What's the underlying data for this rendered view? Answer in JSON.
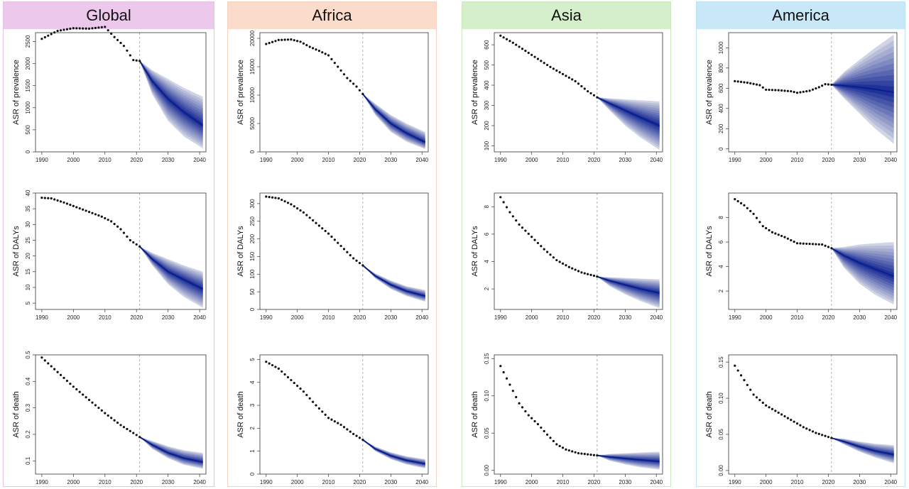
{
  "colors": {
    "Global": {
      "header": "#ecc9ec",
      "border": "#e6c2e6"
    },
    "Africa": {
      "header": "#fbdccb",
      "border": "#f6d2c0"
    },
    "Asia": {
      "header": "#d4efc9",
      "border": "#cce8c0"
    },
    "America": {
      "header": "#c9e8f7",
      "border": "#bfe1f2"
    },
    "points": "#111111",
    "fan_core": "#0a1f8f",
    "fan_outer": "#c8ccdf",
    "divider": "#999999"
  },
  "panels": [
    {
      "region": "Global"
    },
    {
      "region": "Africa"
    },
    {
      "region": "Asia"
    },
    {
      "region": "America"
    }
  ],
  "chart_data": [
    {
      "type": "line",
      "region": "Global",
      "ylabel": "ASR of prevalence",
      "xticks": [
        1990,
        2000,
        2010,
        2020,
        2030,
        2040
      ],
      "yticks": [
        0,
        500,
        1000,
        1500,
        2000,
        2500
      ],
      "ylim": [
        0,
        2700
      ],
      "xlim": [
        1988,
        2042
      ],
      "projection_start": 2021,
      "observed": {
        "x": [
          1990,
          1995,
          2000,
          2005,
          2010,
          2013,
          2016,
          2019,
          2021
        ],
        "y": [
          2560,
          2740,
          2800,
          2790,
          2830,
          2600,
          2400,
          2080,
          2060
        ]
      },
      "forecast": {
        "x": [
          2021,
          2025,
          2030,
          2035,
          2041
        ],
        "mean": [
          2060,
          1600,
          1200,
          900,
          600
        ],
        "lower": [
          2060,
          1300,
          700,
          350,
          80
        ],
        "upper": [
          2060,
          1850,
          1650,
          1450,
          1250
        ]
      }
    },
    {
      "type": "line",
      "region": "Global",
      "ylabel": "ASR of DALYs",
      "xticks": [
        1990,
        2000,
        2010,
        2020,
        2030,
        2040
      ],
      "yticks": [
        5,
        10,
        15,
        20,
        25,
        30,
        35,
        40
      ],
      "ylim": [
        3,
        40
      ],
      "xlim": [
        1988,
        2042
      ],
      "projection_start": 2021,
      "observed": {
        "x": [
          1990,
          1993,
          1997,
          2001,
          2005,
          2009,
          2012,
          2015,
          2018,
          2021
        ],
        "y": [
          38.5,
          38.3,
          37,
          35.5,
          34,
          32.5,
          31,
          28.5,
          25,
          23
        ]
      },
      "forecast": {
        "x": [
          2021,
          2025,
          2030,
          2035,
          2041
        ],
        "mean": [
          23,
          19,
          15,
          12.5,
          9.5
        ],
        "lower": [
          23,
          17,
          11,
          7,
          3.5
        ],
        "upper": [
          23,
          21,
          19,
          17,
          15
        ]
      }
    },
    {
      "type": "line",
      "region": "Global",
      "ylabel": "ASR of death",
      "xticks": [
        1990,
        2000,
        2010,
        2020,
        2030,
        2040
      ],
      "yticks": [
        0.1,
        0.2,
        0.3,
        0.4,
        0.5
      ],
      "ylim": [
        0.05,
        0.5
      ],
      "xlim": [
        1988,
        2042
      ],
      "projection_start": 2021,
      "observed": {
        "x": [
          1990,
          1995,
          2000,
          2005,
          2010,
          2015,
          2021
        ],
        "y": [
          0.49,
          0.435,
          0.38,
          0.33,
          0.28,
          0.235,
          0.19
        ]
      },
      "forecast": {
        "x": [
          2021,
          2025,
          2030,
          2035,
          2041
        ],
        "mean": [
          0.19,
          0.16,
          0.13,
          0.11,
          0.095
        ],
        "lower": [
          0.19,
          0.145,
          0.11,
          0.085,
          0.07
        ],
        "upper": [
          0.19,
          0.175,
          0.155,
          0.14,
          0.13
        ]
      }
    },
    {
      "type": "line",
      "region": "Africa",
      "ylabel": "ASR of prevalence",
      "xticks": [
        1990,
        2000,
        2010,
        2020,
        2030,
        2040
      ],
      "yticks": [
        0,
        5000,
        10000,
        15000,
        20000
      ],
      "ylim": [
        0,
        21000
      ],
      "xlim": [
        1988,
        2042
      ],
      "projection_start": 2021,
      "observed": {
        "x": [
          1990,
          1994,
          1998,
          2001,
          2004,
          2007,
          2010,
          2013,
          2016,
          2019,
          2021
        ],
        "y": [
          19000,
          19700,
          19800,
          19400,
          18500,
          17800,
          17000,
          15000,
          13000,
          11500,
          10200
        ]
      },
      "forecast": {
        "x": [
          2021,
          2025,
          2030,
          2035,
          2041
        ],
        "mean": [
          10200,
          7500,
          5000,
          3300,
          1700
        ],
        "lower": [
          10200,
          6500,
          3500,
          1800,
          500
        ],
        "upper": [
          10200,
          8500,
          6500,
          5000,
          3500
        ]
      }
    },
    {
      "type": "line",
      "region": "Africa",
      "ylabel": "ASR of DALYs",
      "xticks": [
        1990,
        2000,
        2010,
        2020,
        2030,
        2040
      ],
      "yticks": [
        0,
        50,
        100,
        150,
        200,
        250,
        300
      ],
      "ylim": [
        0,
        330
      ],
      "xlim": [
        1988,
        2042
      ],
      "projection_start": 2021,
      "observed": {
        "x": [
          1990,
          1994,
          1998,
          2002,
          2006,
          2010,
          2014,
          2018,
          2021
        ],
        "y": [
          320,
          315,
          298,
          275,
          245,
          215,
          180,
          145,
          125
        ]
      },
      "forecast": {
        "x": [
          2021,
          2025,
          2030,
          2035,
          2041
        ],
        "mean": [
          125,
          95,
          70,
          52,
          38
        ],
        "lower": [
          125,
          88,
          58,
          38,
          22
        ],
        "upper": [
          125,
          102,
          82,
          66,
          55
        ]
      }
    },
    {
      "type": "line",
      "region": "Africa",
      "ylabel": "ASR of death",
      "xticks": [
        1990,
        2000,
        2010,
        2020,
        2030,
        2040
      ],
      "yticks": [
        0,
        1,
        2,
        3,
        4,
        5
      ],
      "ylim": [
        0,
        5.2
      ],
      "xlim": [
        1988,
        2042
      ],
      "projection_start": 2021,
      "observed": {
        "x": [
          1990,
          1994,
          1998,
          2002,
          2006,
          2010,
          2014,
          2018,
          2021
        ],
        "y": [
          4.9,
          4.6,
          4.1,
          3.6,
          3.0,
          2.45,
          2.15,
          1.75,
          1.5
        ]
      },
      "forecast": {
        "x": [
          2021,
          2025,
          2030,
          2035,
          2041
        ],
        "mean": [
          1.5,
          1.1,
          0.8,
          0.6,
          0.45
        ],
        "lower": [
          1.5,
          1.0,
          0.65,
          0.42,
          0.25
        ],
        "upper": [
          1.5,
          1.2,
          0.95,
          0.78,
          0.65
        ]
      }
    },
    {
      "type": "line",
      "region": "Asia",
      "ylabel": "ASR of prevalence",
      "xticks": [
        1990,
        2000,
        2010,
        2020,
        2030,
        2040
      ],
      "yticks": [
        100,
        200,
        300,
        400,
        500,
        600
      ],
      "ylim": [
        70,
        660
      ],
      "xlim": [
        1988,
        2042
      ],
      "projection_start": 2021,
      "observed": {
        "x": [
          1990,
          1994,
          1998,
          2002,
          2006,
          2010,
          2014,
          2018,
          2021
        ],
        "y": [
          645,
          610,
          570,
          530,
          490,
          455,
          420,
          370,
          340
        ]
      },
      "forecast": {
        "x": [
          2021,
          2025,
          2030,
          2035,
          2041
        ],
        "mean": [
          340,
          310,
          275,
          240,
          200
        ],
        "lower": [
          340,
          275,
          200,
          140,
          80
        ],
        "upper": [
          340,
          335,
          330,
          325,
          320
        ]
      }
    },
    {
      "type": "line",
      "region": "Asia",
      "ylabel": "ASR of DALYs",
      "xticks": [
        1990,
        2000,
        2010,
        2020,
        2030,
        2040
      ],
      "yticks": [
        2,
        4,
        6,
        8
      ],
      "ylim": [
        0.5,
        9
      ],
      "xlim": [
        1988,
        2042
      ],
      "projection_start": 2021,
      "observed": {
        "x": [
          1990,
          1993,
          1996,
          2000,
          2004,
          2008,
          2012,
          2016,
          2021
        ],
        "y": [
          8.7,
          7.6,
          6.7,
          5.8,
          4.9,
          4.1,
          3.6,
          3.2,
          2.9
        ]
      },
      "forecast": {
        "x": [
          2021,
          2025,
          2030,
          2035,
          2041
        ],
        "mean": [
          2.9,
          2.6,
          2.3,
          2.0,
          1.7
        ],
        "lower": [
          2.9,
          2.2,
          1.6,
          1.1,
          0.6
        ],
        "upper": [
          2.9,
          2.85,
          2.8,
          2.75,
          2.7
        ]
      }
    },
    {
      "type": "line",
      "region": "Asia",
      "ylabel": "ASR of death",
      "xticks": [
        1990,
        2000,
        2010,
        2020,
        2030,
        2040
      ],
      "yticks": [
        0.0,
        0.05,
        0.1,
        0.15
      ],
      "ytick_labels": [
        "0.00",
        "0.05",
        "0.10",
        "0.15"
      ],
      "ylim": [
        -0.005,
        0.155
      ],
      "xlim": [
        1988,
        2042
      ],
      "projection_start": 2021,
      "observed": {
        "x": [
          1990,
          1993,
          1996,
          1999,
          2002,
          2005,
          2008,
          2011,
          2015,
          2021
        ],
        "y": [
          0.14,
          0.115,
          0.09,
          0.074,
          0.062,
          0.048,
          0.035,
          0.028,
          0.023,
          0.02
        ]
      },
      "forecast": {
        "x": [
          2021,
          2025,
          2030,
          2035,
          2041
        ],
        "mean": [
          0.02,
          0.018,
          0.016,
          0.014,
          0.012
        ],
        "lower": [
          0.02,
          0.013,
          0.008,
          0.004,
          0.001
        ],
        "upper": [
          0.02,
          0.022,
          0.023,
          0.024,
          0.025
        ]
      }
    },
    {
      "type": "line",
      "region": "America",
      "ylabel": "ASR of prevalence",
      "xticks": [
        1990,
        2000,
        2010,
        2020,
        2030,
        2040
      ],
      "yticks": [
        0,
        200,
        400,
        600,
        800,
        1000
      ],
      "ylim": [
        -30,
        1150
      ],
      "xlim": [
        1988,
        2042
      ],
      "projection_start": 2021,
      "observed": {
        "x": [
          1990,
          1994,
          1998,
          2000,
          2004,
          2008,
          2010,
          2014,
          2017,
          2019,
          2021
        ],
        "y": [
          670,
          655,
          630,
          585,
          580,
          570,
          555,
          575,
          610,
          640,
          635
        ]
      },
      "forecast": {
        "x": [
          2021,
          2025,
          2030,
          2035,
          2041
        ],
        "mean": [
          635,
          625,
          610,
          590,
          560
        ],
        "lower": [
          635,
          500,
          350,
          200,
          50
        ],
        "upper": [
          635,
          760,
          880,
          1000,
          1130
        ]
      }
    },
    {
      "type": "line",
      "region": "America",
      "ylabel": "ASR of DALYs",
      "xticks": [
        1990,
        2000,
        2010,
        2020,
        2030,
        2040
      ],
      "yticks": [
        2,
        4,
        6,
        8
      ],
      "ylim": [
        0.5,
        10
      ],
      "xlim": [
        1988,
        2042
      ],
      "projection_start": 2021,
      "observed": {
        "x": [
          1990,
          1993,
          1996,
          1999,
          2002,
          2006,
          2010,
          2014,
          2018,
          2021
        ],
        "y": [
          9.5,
          9.0,
          8.3,
          7.3,
          6.8,
          6.4,
          5.9,
          5.85,
          5.8,
          5.5
        ]
      },
      "forecast": {
        "x": [
          2021,
          2025,
          2030,
          2035,
          2041
        ],
        "mean": [
          5.5,
          4.9,
          4.3,
          3.8,
          3.2
        ],
        "lower": [
          5.5,
          3.9,
          2.6,
          1.7,
          0.9
        ],
        "upper": [
          5.5,
          5.6,
          5.8,
          5.9,
          6.0
        ]
      }
    },
    {
      "type": "line",
      "region": "America",
      "ylabel": "ASR of death",
      "xticks": [
        1990,
        2000,
        2010,
        2020,
        2030,
        2040
      ],
      "yticks": [
        0.0,
        0.05,
        0.1,
        0.15
      ],
      "ytick_labels": [
        "0.00",
        "0.05",
        "0.10",
        "0.15"
      ],
      "ylim": [
        -0.005,
        0.16
      ],
      "xlim": [
        1988,
        2042
      ],
      "projection_start": 2021,
      "observed": {
        "x": [
          1990,
          1993,
          1996,
          2000,
          2004,
          2008,
          2012,
          2016,
          2021
        ],
        "y": [
          0.145,
          0.125,
          0.105,
          0.09,
          0.08,
          0.07,
          0.06,
          0.052,
          0.045
        ]
      },
      "forecast": {
        "x": [
          2021,
          2025,
          2030,
          2035,
          2041
        ],
        "mean": [
          0.045,
          0.04,
          0.033,
          0.027,
          0.022
        ],
        "lower": [
          0.045,
          0.036,
          0.026,
          0.018,
          0.01
        ],
        "upper": [
          0.045,
          0.044,
          0.04,
          0.037,
          0.035
        ]
      }
    }
  ]
}
